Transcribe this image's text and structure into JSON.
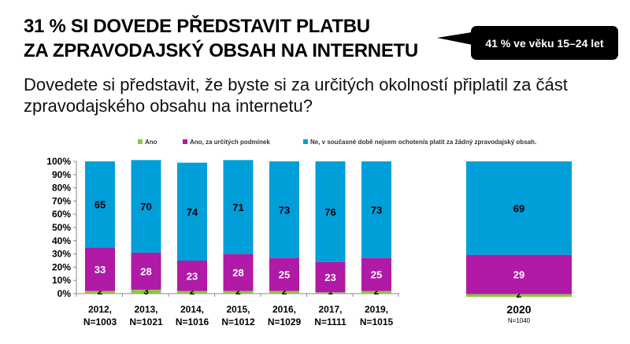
{
  "header": {
    "title_line1": "31 % SI DOVEDE PŘEDSTAVIT PLATBU",
    "title_line2": "ZA ZPRAVODAJSKÝ OBSAH NA INTERNETU",
    "callout": "41 % ve věku 15–24 let",
    "question": "Dovedete si představit, že byste si za určitých okolností připlatil za část zpravodajského obsahu na internetu?"
  },
  "chart_data": {
    "type": "bar",
    "stacked": true,
    "legend_position": "top",
    "colors": {
      "Ano": "#8dc63f",
      "Ano, za určitých podmínek": "#b01aa7",
      "Ne": "#009fd9"
    },
    "categories": [
      "2012,|N=1003",
      "2013,|N=1021",
      "2014,|N=1016",
      "2015,|N=1012",
      "2016,|N=1029",
      "2017,|N=1111",
      "2019,|N=1015"
    ],
    "yticks": [
      "0%",
      "10%",
      "20%",
      "30%",
      "40%",
      "50%",
      "60%",
      "70%",
      "80%",
      "90%",
      "100%"
    ],
    "ylim": [
      0,
      100
    ],
    "series": [
      {
        "name": "Ano",
        "values": [
          2,
          3,
          2,
          2,
          2,
          1,
          2
        ]
      },
      {
        "name": "Ano, za určitých podmínek",
        "values": [
          33,
          28,
          23,
          28,
          25,
          23,
          25
        ]
      },
      {
        "name": "Ne, v současné době nejsem ochoten/a platit za žádný zpravodajský obsah.",
        "values": [
          65,
          70,
          74,
          71,
          73,
          76,
          73
        ]
      }
    ],
    "highlight": {
      "label": "2020",
      "n": "N=1040",
      "values": [
        2,
        29,
        69
      ]
    }
  }
}
